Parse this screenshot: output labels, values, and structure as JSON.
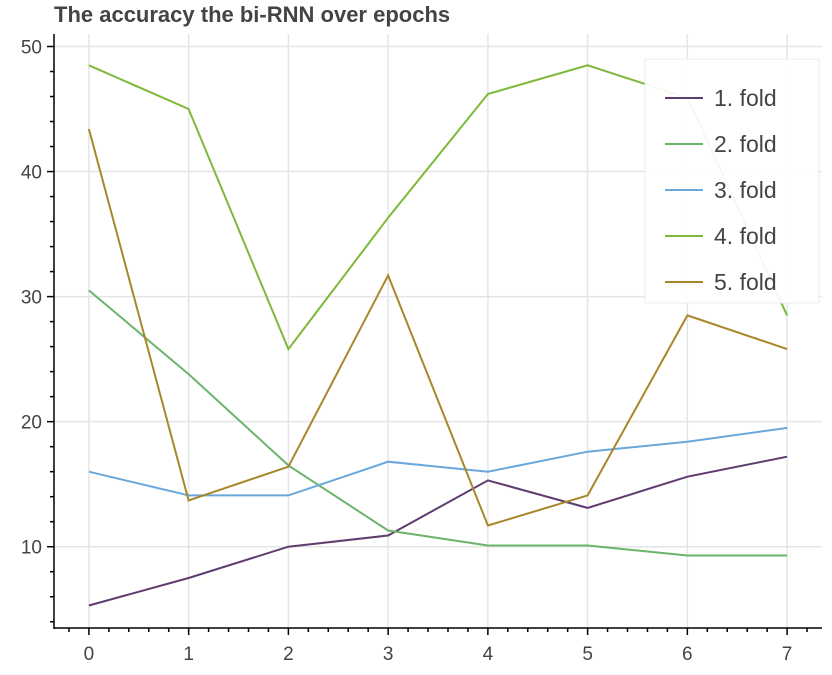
{
  "chart_data": {
    "type": "line",
    "title": "The accuracy the bi-RNN over epochs",
    "xlabel": "",
    "ylabel": "",
    "x": [
      0,
      1,
      2,
      3,
      4,
      5,
      6,
      7
    ],
    "xlim": [
      -0.35,
      7.35
    ],
    "ylim": [
      3.5,
      51
    ],
    "x_ticks": [
      0,
      1,
      2,
      3,
      4,
      5,
      6,
      7
    ],
    "y_ticks": [
      10,
      20,
      30,
      40,
      50
    ],
    "grid": true,
    "legend_position": "top-right",
    "series": [
      {
        "name": "1. fold",
        "color": "#5e3c6f",
        "values": [
          5.3,
          7.5,
          10.0,
          10.9,
          15.3,
          13.1,
          15.6,
          17.2
        ]
      },
      {
        "name": "2. fold",
        "color": "#6cb46c",
        "values": [
          30.5,
          23.8,
          16.5,
          11.3,
          10.1,
          10.1,
          9.3,
          9.3
        ]
      },
      {
        "name": "3. fold",
        "color": "#6aa8dc",
        "values": [
          16.0,
          14.1,
          14.1,
          16.8,
          16.0,
          17.6,
          18.4,
          19.5
        ]
      },
      {
        "name": "4. fold",
        "color": "#7db93a",
        "values": [
          48.5,
          45.0,
          25.8,
          36.3,
          46.2,
          48.5,
          45.9,
          28.5
        ]
      },
      {
        "name": "5. fold",
        "color": "#a8872a",
        "values": [
          43.4,
          13.7,
          16.4,
          31.7,
          11.7,
          14.1,
          28.5,
          25.8
        ]
      }
    ]
  }
}
